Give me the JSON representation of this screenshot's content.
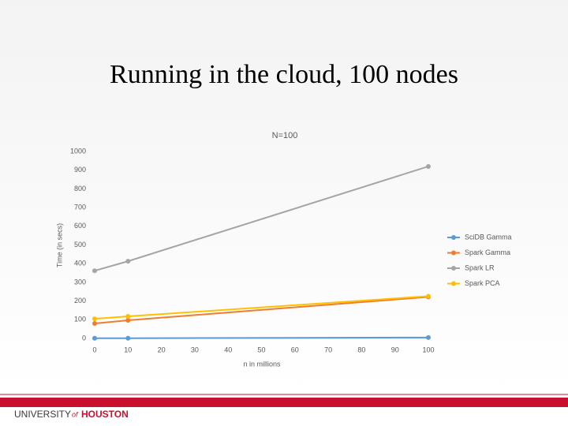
{
  "slide": {
    "title": "Running in the cloud, 100 nodes"
  },
  "chart_data": {
    "type": "line",
    "title": "N=100",
    "x_label": "n in millions",
    "y_label": "Time (in secs)",
    "x": [
      0,
      10,
      100
    ],
    "series": [
      {
        "name": "SciDB Gamma",
        "color": "#5b9bd5",
        "values": [
          1,
          1,
          5
        ]
      },
      {
        "name": "Spark Gamma",
        "color": "#ed7d31",
        "values": [
          80,
          97,
          222
        ]
      },
      {
        "name": "Spark LR",
        "color": "#a5a5a5",
        "values": [
          362,
          413,
          920
        ]
      },
      {
        "name": "Spark PCA",
        "color": "#ffc000",
        "values": [
          105,
          118,
          226
        ]
      }
    ],
    "xlim": [
      0,
      100
    ],
    "xticks": [
      0,
      10,
      20,
      30,
      40,
      50,
      60,
      70,
      80,
      90,
      100
    ],
    "ylim": [
      0,
      1000
    ],
    "yticks": [
      0,
      100,
      200,
      300,
      400,
      500,
      600,
      700,
      800,
      900,
      1000
    ],
    "grid": false,
    "legend": "right"
  },
  "footer": {
    "university": "UNIVERSITY",
    "of": "of",
    "houston": "HOUSTON"
  }
}
